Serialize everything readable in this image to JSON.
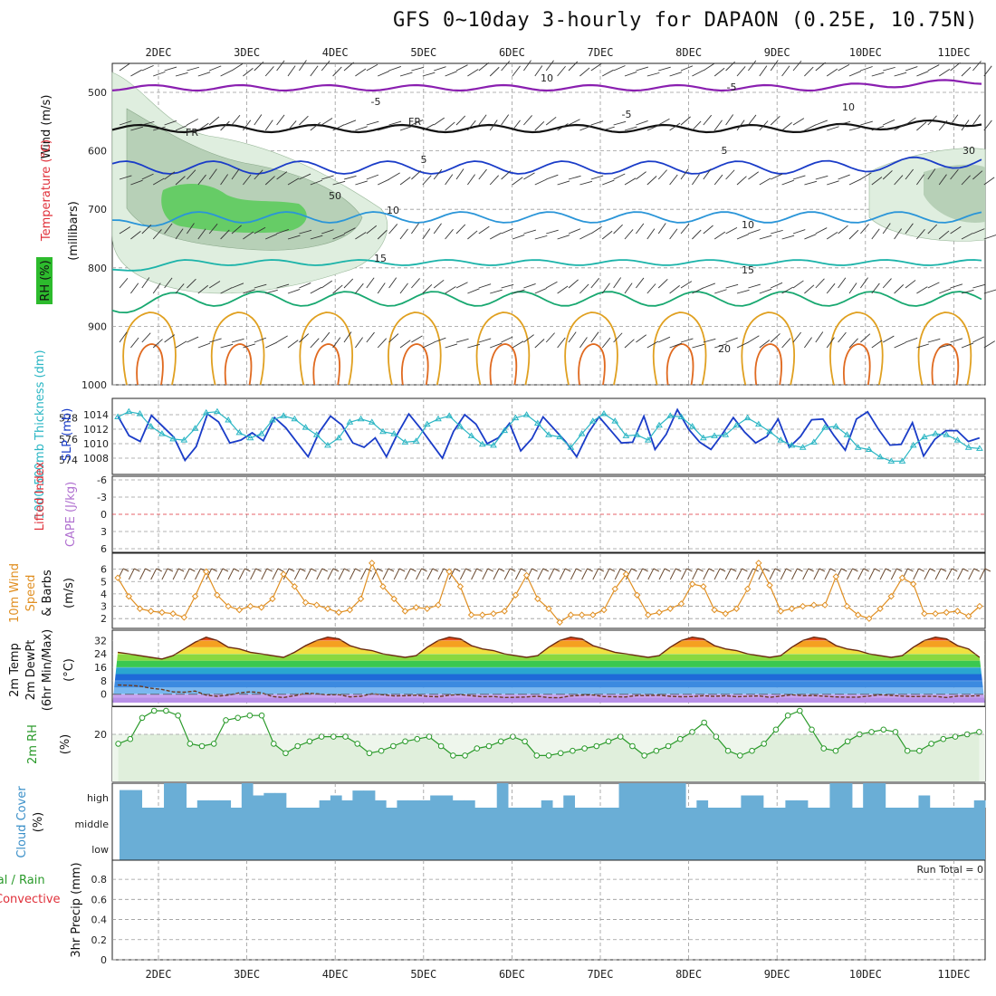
{
  "title": "GFS 0~10day 3-hourly for DAPAON (0.25E, 10.75N)",
  "date_labels": [
    "2DEC",
    "3DEC",
    "4DEC",
    "5DEC",
    "6DEC",
    "7DEC",
    "8DEC",
    "9DEC",
    "10DEC",
    "11DEC"
  ],
  "colors": {
    "cyan": "#2bb6c4",
    "blue": "#1a3cc8",
    "orange": "#e08f22",
    "green": "#2a9a2a",
    "cloud": "#6aaed6",
    "purple": "#8a1fb0",
    "black": "#111111"
  },
  "panels": {
    "upper": {
      "label_lines": [
        "Wind (m/s)",
        "Temperature (°C)",
        "RH (%)",
        "(millibars)"
      ],
      "pressure_ticks": [
        "500",
        "600",
        "700",
        "800",
        "900",
        "1000"
      ],
      "contour_labels": [
        "-5",
        "-5",
        "FR",
        "FR",
        "-5",
        "5",
        "5",
        "10",
        "10",
        "15",
        "15",
        "20",
        "10",
        "10",
        "30",
        "50"
      ]
    },
    "slp": {
      "label_left": "1000-500mb Thickness (dm)",
      "label_right": "SLP (mb)",
      "left_ticks": [
        "578",
        "576",
        "574"
      ],
      "right_ticks": [
        "1014",
        "1012",
        "1010",
        "1008"
      ]
    },
    "li": {
      "label_left": "Lifted Index",
      "label_right": "CAPE (J/kg)",
      "ticks": [
        "-6",
        "-3",
        "0",
        "3",
        "6"
      ]
    },
    "wind": {
      "label_lines": [
        "10m Wind",
        "Speed",
        "& Barbs",
        "(m/s)"
      ],
      "ticks": [
        "6",
        "5",
        "4",
        "3",
        "2"
      ]
    },
    "temp": {
      "label_lines": [
        "2m Temp",
        "2m DewPt",
        "(6hr Min/Max)",
        "(°C)"
      ],
      "ticks": [
        "32",
        "24",
        "16",
        "8",
        "0"
      ]
    },
    "rh": {
      "label_lines": [
        "2m RH",
        "(%)"
      ],
      "ticks": [
        "20"
      ]
    },
    "cloud": {
      "label_lines": [
        "Cloud Cover",
        "(%)"
      ],
      "level_ticks": [
        "high",
        "middle",
        "low"
      ]
    },
    "precip": {
      "label_lines": [
        "Total / Rain",
        "Convective",
        "3hr Precip (mm)"
      ],
      "ticks": [
        "0.8",
        "0.6",
        "0.4",
        "0.2",
        "0"
      ],
      "run_total": "Run Total = 0"
    }
  },
  "chart_data": [
    {
      "type": "line",
      "name": "slp-thickness",
      "series": [
        {
          "name": "SLP (mb)",
          "axis": "right",
          "values": [
            1013.8,
            1011.1,
            1010.3,
            1013.9,
            1012.4,
            1010.9,
            1007.7,
            1009.6,
            1014.1,
            1013.0,
            1010.1,
            1010.5,
            1011.5,
            1010.4,
            1013.6,
            1012.2,
            1010.2,
            1008.2,
            1011.6,
            1013.8,
            1012.6,
            1010.1,
            1009.5,
            1010.8,
            1008.2,
            1011.4,
            1014.1,
            1012.2,
            1010.1,
            1008.0,
            1011.7,
            1014.0,
            1012.7,
            1010.0,
            1010.8,
            1012.8,
            1009.0,
            1010.7,
            1013.7,
            1012.0,
            1010.3,
            1008.2,
            1011.4,
            1013.7,
            1011.9,
            1010.1,
            1010.2,
            1013.8,
            1009.2,
            1011.3,
            1014.7,
            1012.0,
            1010.2,
            1009.2,
            1011.3,
            1013.6,
            1011.6,
            1010.1,
            1011.0,
            1013.4,
            1009.5,
            1011.0,
            1013.3,
            1013.4,
            1011.1,
            1009.1,
            1013.4,
            1014.4,
            1011.9,
            1009.8,
            1009.9,
            1012.9,
            1008.3,
            1010.6,
            1011.8,
            1011.8,
            1010.3,
            1010.8
          ]
        },
        {
          "name": "Thickness (dm)",
          "axis": "left",
          "values": [
            578.1,
            578.6,
            578.4,
            577.2,
            576.5,
            576.0,
            575.9,
            577.0,
            578.5,
            578.6,
            577.8,
            576.6,
            576.1,
            576.5,
            577.8,
            578.2,
            577.9,
            577.1,
            576.4,
            575.4,
            576.1,
            577.6,
            577.9,
            577.6,
            576.7,
            576.5,
            575.7,
            575.8,
            577.4,
            577.9,
            578.2,
            577.2,
            576.3,
            575.5,
            575.4,
            576.8,
            578.0,
            578.3,
            577.5,
            576.4,
            576.2,
            575.2,
            576.5,
            577.7,
            578.4,
            577.7,
            576.3,
            576.4,
            575.9,
            577.3,
            578.2,
            578.1,
            577.2,
            576.1,
            576.3,
            576.4,
            577.3,
            578.0,
            577.4,
            576.7,
            575.9,
            575.4,
            575.2,
            575.7,
            577.1,
            577.2,
            576.4,
            575.2,
            575.0,
            574.3,
            573.9,
            573.9,
            575.4,
            576.2,
            576.5,
            576.4,
            575.9,
            575.2,
            575.1
          ]
        }
      ],
      "xlabel": "",
      "ylabel": ""
    },
    {
      "type": "line",
      "name": "wind-speed",
      "values": [
        5.3,
        3.8,
        2.8,
        2.6,
        2.5,
        2.4,
        2.1,
        3.8,
        5.8,
        3.9,
        3.0,
        2.7,
        3.0,
        2.9,
        3.6,
        5.6,
        4.6,
        3.3,
        3.1,
        2.8,
        2.5,
        2.7,
        3.6,
        6.5,
        4.6,
        3.6,
        2.6,
        2.9,
        2.8,
        3.1,
        5.8,
        4.6,
        2.3,
        2.3,
        2.4,
        2.6,
        3.9,
        5.5,
        3.6,
        2.8,
        1.7,
        2.3,
        2.3,
        2.3,
        2.7,
        4.4,
        5.6,
        3.9,
        2.3,
        2.5,
        2.8,
        3.2,
        4.8,
        4.6,
        2.7,
        2.4,
        2.8,
        4.4,
        6.5,
        4.7,
        2.6,
        2.8,
        3.0,
        3.1,
        3.1,
        5.4,
        3.0,
        2.3,
        2.0,
        2.8,
        3.8,
        5.3,
        4.8,
        2.4,
        2.4,
        2.5,
        2.6,
        2.2,
        3.0
      ],
      "ylim": [
        1.5,
        7
      ]
    },
    {
      "type": "area",
      "name": "temperature",
      "series": [
        {
          "name": "2m Temp",
          "values": [
            25,
            24,
            23,
            22,
            21,
            23,
            27,
            31,
            34,
            32,
            28,
            27,
            25,
            24,
            23,
            22,
            25,
            29,
            32,
            34,
            33,
            29,
            27,
            26,
            24,
            23,
            22,
            23,
            28,
            32,
            34,
            33,
            29,
            27,
            26,
            24,
            23,
            22,
            23,
            28,
            32,
            34,
            33,
            29,
            27,
            25,
            24,
            23,
            22,
            23,
            28,
            32,
            34,
            33,
            29,
            27,
            26,
            24,
            23,
            22,
            23,
            28,
            32,
            34,
            33,
            29,
            27,
            26,
            24,
            23,
            22,
            23,
            28,
            32,
            34,
            33,
            29,
            27,
            22
          ]
        },
        {
          "name": "2m DewPt",
          "values": [
            5.5,
            5.3,
            4.8,
            3.6,
            2.9,
            1.4,
            1.2,
            1.9,
            -0.5,
            -1.2,
            -0.5,
            0.8,
            1.5,
            0.9,
            -1.4,
            -1.9,
            -0.9,
            0.6,
            0.3,
            -0.3,
            -0.2,
            -1.6,
            -1.2,
            0.3,
            -0.3,
            -1.0,
            -0.9,
            -0.5,
            -1.3,
            -1.5,
            -0.6,
            -0.2,
            -0.9,
            -1.5,
            -1.4,
            -1.9,
            -1.8,
            -1.6,
            -1.2,
            -2.0,
            -2.1,
            -1.0,
            -0.6,
            -0.4,
            -1.4,
            -1.5,
            -1.6,
            -0.8,
            -0.8,
            -0.6,
            -1.2,
            -1.5,
            -1.4,
            -0.9,
            -1.3,
            -0.9,
            -1.5,
            -1.2,
            -1.0,
            -1.8,
            -1.1,
            -0.3,
            -0.9,
            -0.8,
            -1.2,
            -1.6,
            -1.7,
            -1.7,
            -1.1,
            -0.3,
            -0.7,
            -1.1,
            -1.4,
            -1.3,
            -1.3,
            -1.9,
            -1.1,
            -1.1,
            -0.9
          ]
        }
      ],
      "ylim": [
        -5,
        36
      ]
    },
    {
      "type": "area",
      "name": "relative-humidity",
      "values": [
        16,
        18,
        27,
        30,
        30,
        28,
        16,
        15,
        16,
        26,
        27,
        28,
        28,
        16,
        12,
        15,
        17,
        19,
        19,
        19,
        16,
        12,
        13,
        15,
        17,
        18,
        19,
        15,
        11,
        11,
        14,
        15,
        17,
        19,
        17,
        11,
        11,
        12,
        13,
        14,
        15,
        17,
        19,
        15,
        11,
        13,
        15,
        18,
        21,
        25,
        19,
        13,
        11,
        13,
        16,
        22,
        28,
        30,
        22,
        14,
        13,
        17,
        20,
        21,
        22,
        21,
        13,
        13,
        16,
        18,
        19,
        20,
        21
      ],
      "ylim": [
        0,
        30
      ]
    },
    {
      "type": "bar",
      "name": "cloud-cover-high",
      "values": [
        0.72,
        0.72,
        0,
        0,
        1,
        1,
        0,
        0.3,
        0.3,
        0.3,
        0,
        1,
        0.5,
        0.6,
        0.6,
        0,
        0,
        0,
        0.3,
        0.5,
        0.3,
        0.7,
        0.7,
        0.3,
        0,
        0.3,
        0.3,
        0.3,
        0.5,
        0.5,
        0.3,
        0.3,
        0,
        0,
        1,
        0,
        0,
        0,
        0.3,
        0,
        0.5,
        0,
        0,
        0,
        0,
        1,
        1,
        1,
        1,
        1,
        1,
        0,
        0.3,
        0,
        0,
        0,
        0.5,
        0.5,
        0,
        0,
        0.3,
        0.3,
        0,
        0,
        1,
        1,
        0,
        1,
        1,
        0,
        0,
        0,
        0.5,
        0,
        0,
        0,
        0,
        0.3
      ],
      "ylim": [
        0,
        1
      ]
    },
    {
      "type": "bar",
      "name": "precipitation",
      "values": [],
      "ylim": [
        0,
        0.9
      ]
    }
  ]
}
